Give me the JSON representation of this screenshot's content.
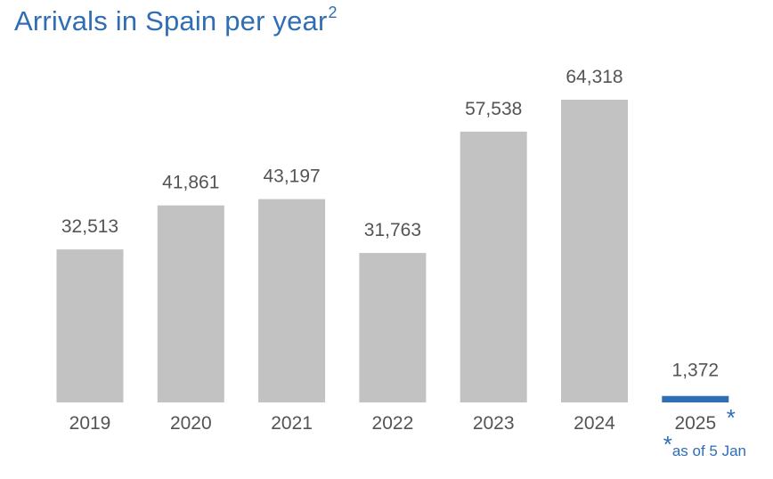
{
  "title": {
    "text": "Arrivals in Spain per year",
    "superscript": "2"
  },
  "colors": {
    "bar": "#c2c2c2",
    "highlight": "#2f6db5",
    "label": "#545454",
    "title": "#2f6db5"
  },
  "footnote": {
    "marker": "*",
    "text": "as of 5 Jan"
  },
  "chart_data": {
    "type": "bar",
    "categories": [
      "2019",
      "2020",
      "2021",
      "2022",
      "2023",
      "2024",
      "2025"
    ],
    "values": [
      32513,
      41861,
      43197,
      31763,
      57538,
      64318,
      1372
    ],
    "value_labels": [
      "32,513",
      "41,861",
      "43,197",
      "31,763",
      "57,538",
      "64,318",
      "1,372"
    ],
    "highlight_index": 6,
    "highlight_marker": "*",
    "title": "Arrivals in Spain per year",
    "xlabel": "",
    "ylabel": "",
    "ylim": [
      0,
      70000
    ],
    "grid": false,
    "legend": "none"
  }
}
